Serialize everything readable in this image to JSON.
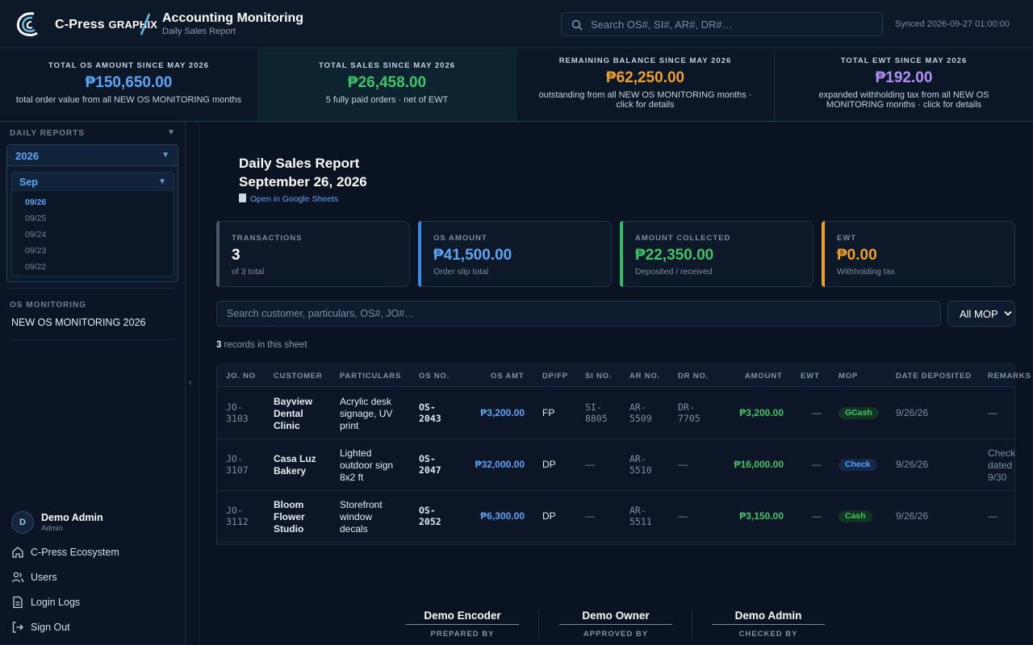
{
  "header": {
    "logo_main": "C-Press",
    "logo_sub": "GRAPHIX",
    "app_title": "Accounting Monitoring",
    "app_subtitle": "Daily Sales Report",
    "search_placeholder": "Search OS#, SI#, AR#, DR#…",
    "synced": "Synced 2026-09-27 01:00:00"
  },
  "summary": [
    {
      "label": "TOTAL OS AMOUNT SINCE MAY 2026",
      "value": "₱150,650.00",
      "desc": "total order value from all NEW OS MONITORING months",
      "color": "#5aa5f5"
    },
    {
      "label": "TOTAL SALES SINCE MAY 2026",
      "value": "₱26,458.00",
      "desc": "5 fully paid orders · net of EWT",
      "color": "#3cc46b"
    },
    {
      "label": "REMAINING BALANCE SINCE MAY 2026",
      "value": "₱62,250.00",
      "desc": "outstanding from all NEW OS MONITORING months · click for details",
      "color": "#f0a02a"
    },
    {
      "label": "TOTAL EWT SINCE MAY 2026",
      "value": "₱192.00",
      "desc": "expanded withholding tax from all NEW OS MONITORING months · click for details",
      "color": "#b08ef5"
    }
  ],
  "sidebar": {
    "daily_reports_label": "DAILY REPORTS",
    "year": "2026",
    "month": "Sep",
    "days": [
      "09/26",
      "09/25",
      "09/24",
      "09/23",
      "09/22"
    ],
    "os_monitoring_label": "OS MONITORING",
    "os_item": "NEW OS MONITORING 2026",
    "user_initial": "D",
    "user_name": "Demo Admin",
    "user_role": "Admin",
    "nav": [
      {
        "label": "C-Press Ecosystem",
        "icon": "home-icon"
      },
      {
        "label": "Users",
        "icon": "users-icon"
      },
      {
        "label": "Login Logs",
        "icon": "document-icon"
      },
      {
        "label": "Sign Out",
        "icon": "sign-out-icon"
      }
    ]
  },
  "report": {
    "title": "Daily Sales Report",
    "date": "September 26, 2026",
    "sheet_link": "Open in Google Sheets"
  },
  "kpis": [
    {
      "label": "TRANSACTIONS",
      "value": "3",
      "sub": "of 3 total"
    },
    {
      "label": "OS AMOUNT",
      "value": "₱41,500.00",
      "sub": "Order slip total"
    },
    {
      "label": "AMOUNT COLLECTED",
      "value": "₱22,350.00",
      "sub": "Deposited / received"
    },
    {
      "label": "EWT",
      "value": "₱0.00",
      "sub": "Withholding tax"
    }
  ],
  "filter": {
    "placeholder": "Search customer, particulars, OS#, JO#…",
    "mop_selected": "All MOP",
    "records_count": "3",
    "records_text": "records in this sheet"
  },
  "table": {
    "columns": [
      "JO. NO",
      "CUSTOMER",
      "PARTICULARS",
      "OS NO.",
      "OS AMT",
      "DP/FP",
      "SI NO.",
      "AR NO.",
      "DR NO.",
      "AMOUNT",
      "EWT",
      "MOP",
      "DATE DEPOSITED",
      "REMARKS"
    ],
    "rows": [
      {
        "jo": "JO-\n3103",
        "customer": "Bayview\nDental\nClinic",
        "particulars": "Acrylic desk\nsignage, UV\nprint",
        "os_no": "OS-\n2043",
        "os_amt": "₱3,200.00",
        "dpfp": "FP",
        "si": "SI-\n8805",
        "ar": "AR-\n5509",
        "dr": "DR-\n7705",
        "amount": "₱3,200.00",
        "ewt": "—",
        "mop": "GCash",
        "date": "9/26/26",
        "remarks": "—"
      },
      {
        "jo": "JO-\n3107",
        "customer": "Casa Luz\nBakery",
        "particulars": "Lighted\noutdoor sign\n8x2 ft",
        "os_no": "OS-\n2047",
        "os_amt": "₱32,000.00",
        "dpfp": "DP",
        "si": "—",
        "ar": "AR-\n5510",
        "dr": "—",
        "amount": "₱16,000.00",
        "ewt": "—",
        "mop": "Check",
        "date": "9/26/26",
        "remarks": "Check\ndated\n9/30"
      },
      {
        "jo": "JO-\n3112",
        "customer": "Bloom\nFlower\nStudio",
        "particulars": "Storefront\nwindow\ndecals",
        "os_no": "OS-\n2052",
        "os_amt": "₱6,300.00",
        "dpfp": "DP",
        "si": "—",
        "ar": "AR-\n5511",
        "dr": "—",
        "amount": "₱3,150.00",
        "ewt": "—",
        "mop": "Cash",
        "date": "9/26/26",
        "remarks": "—"
      }
    ]
  },
  "signatures": [
    {
      "name": "Demo Encoder",
      "role": "PREPARED BY"
    },
    {
      "name": "Demo Owner",
      "role": "APPROVED BY"
    },
    {
      "name": "Demo Admin",
      "role": "CHECKED BY"
    }
  ]
}
